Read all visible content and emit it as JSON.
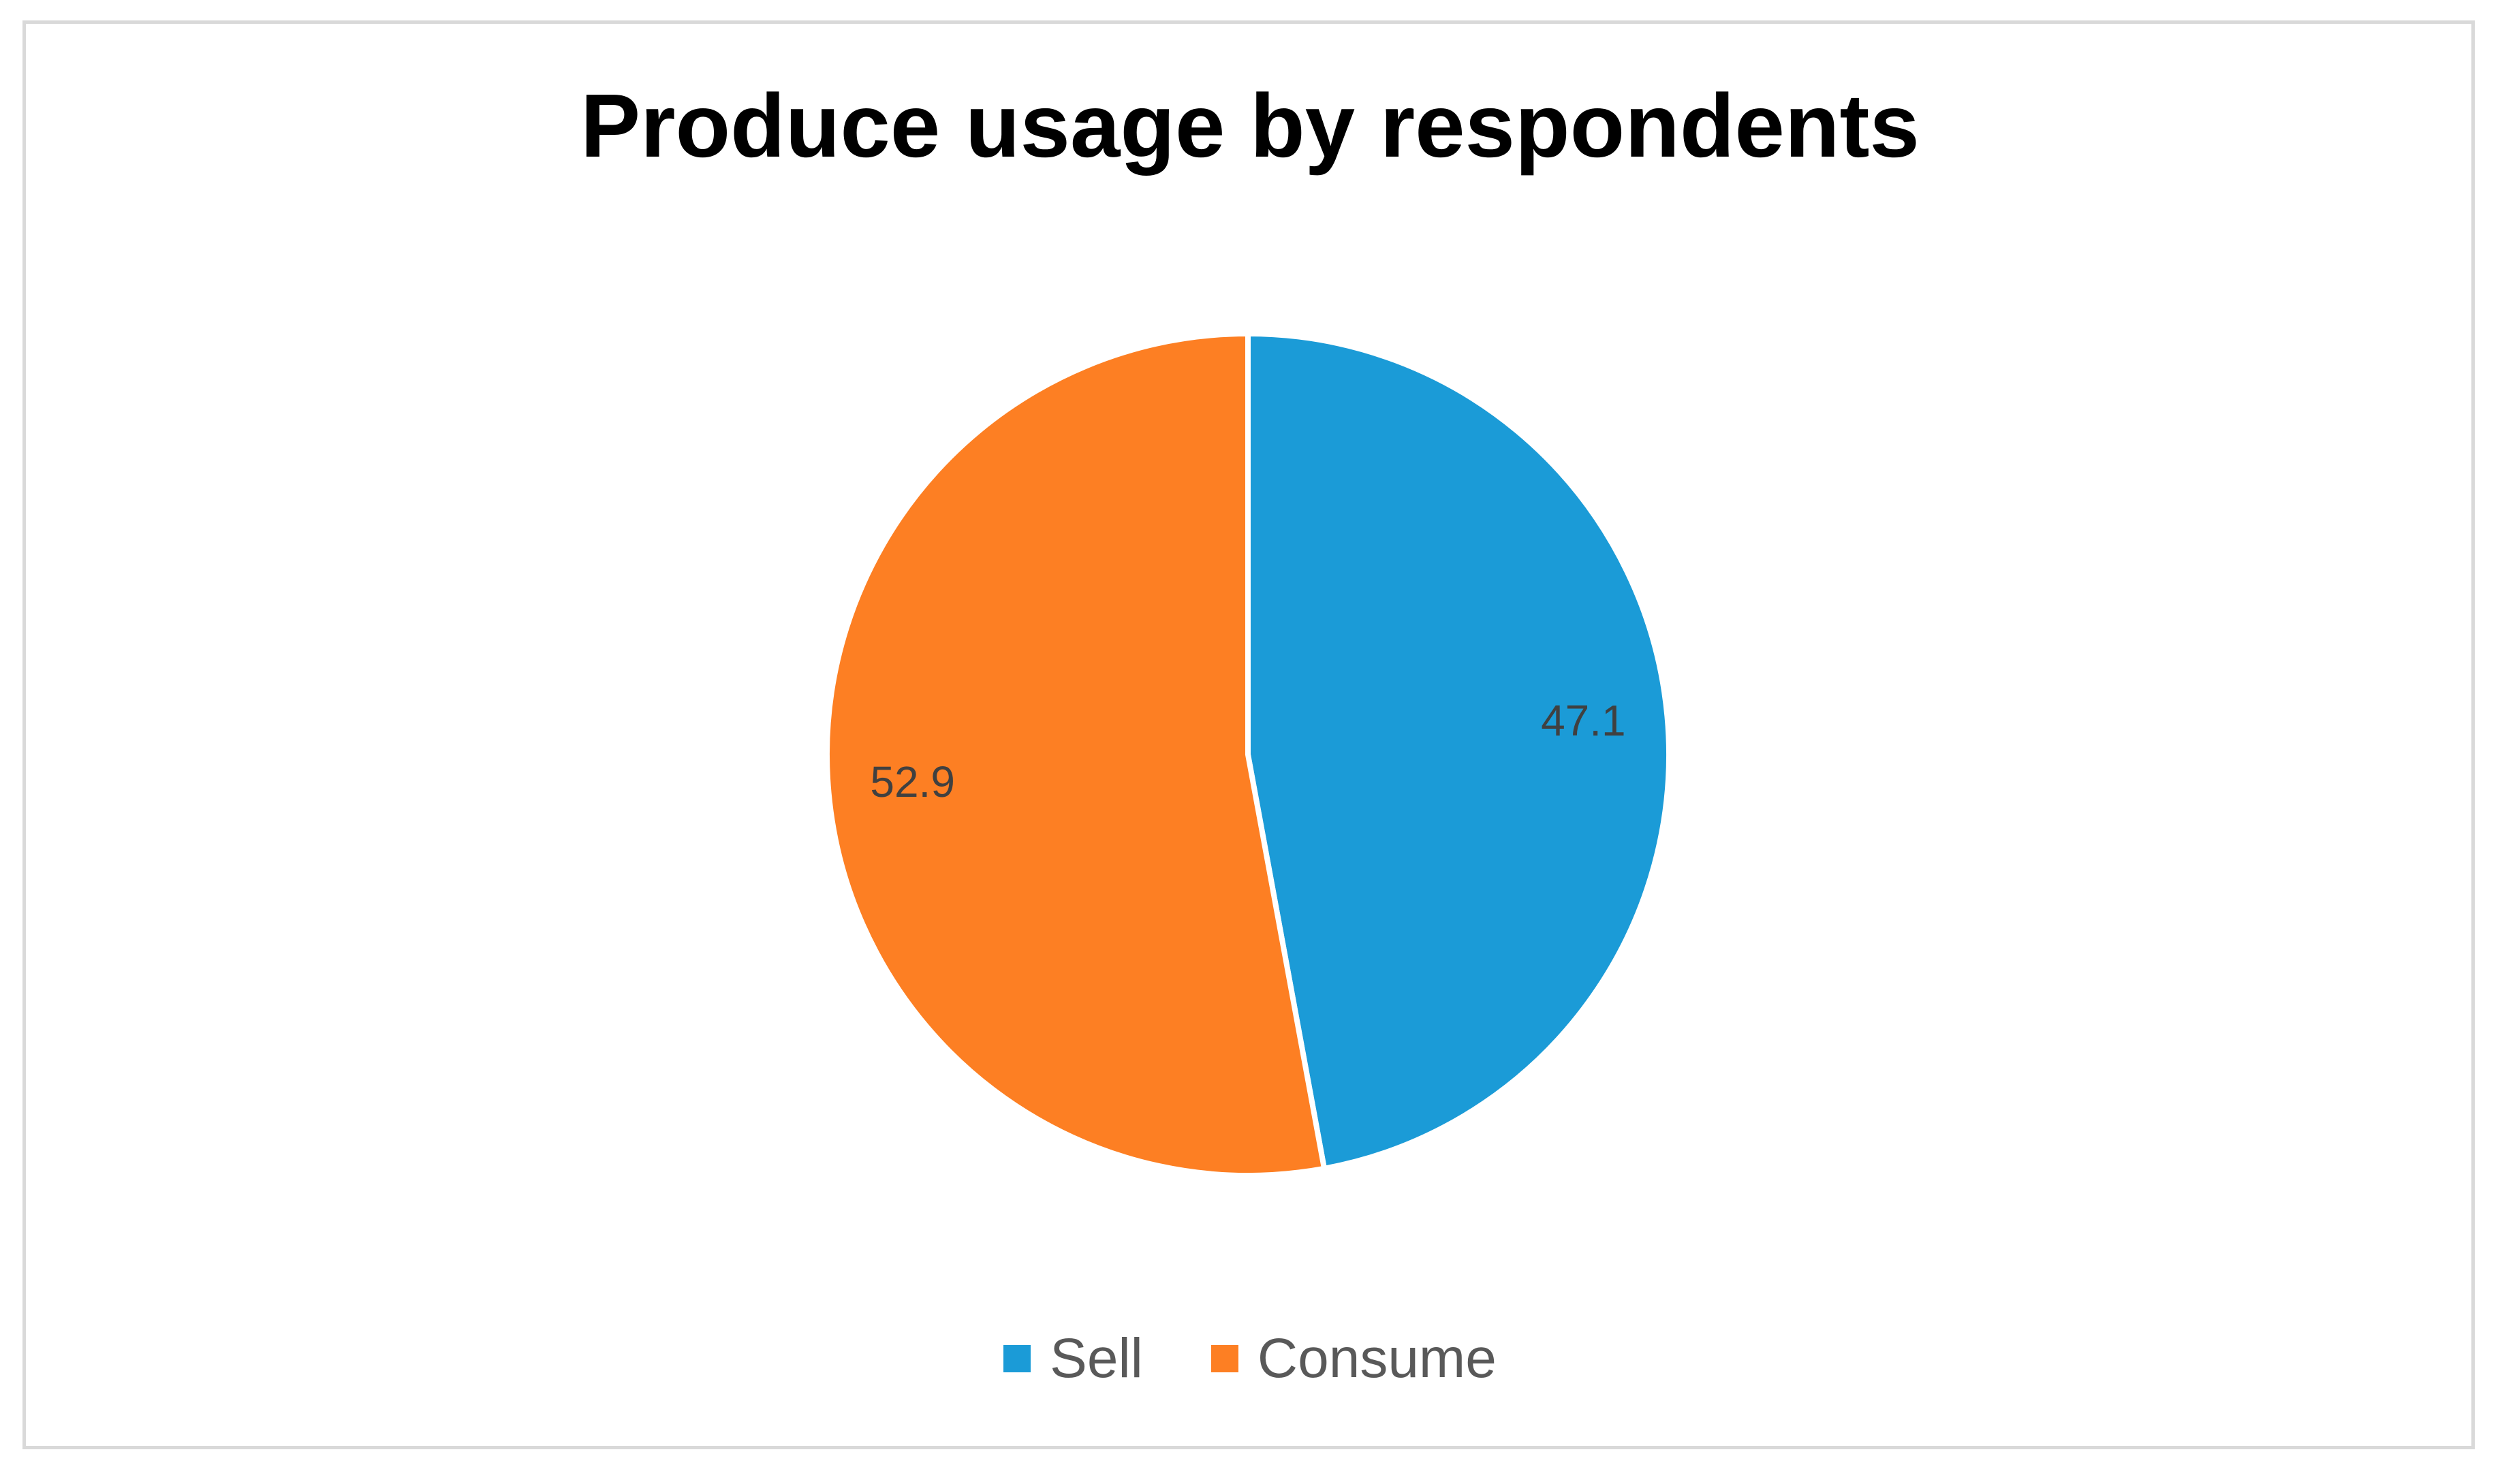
{
  "chart_data": {
    "type": "pie",
    "title": "Produce usage by respondents",
    "categories": [
      "Sell",
      "Consume"
    ],
    "values": [
      47.1,
      52.9
    ],
    "data_labels": [
      "47.1",
      "52.9"
    ],
    "colors": [
      "#1b9bd7",
      "#fd7f23"
    ],
    "start_angle_deg": 0,
    "direction": "clockwise",
    "legend_position": "bottom"
  }
}
